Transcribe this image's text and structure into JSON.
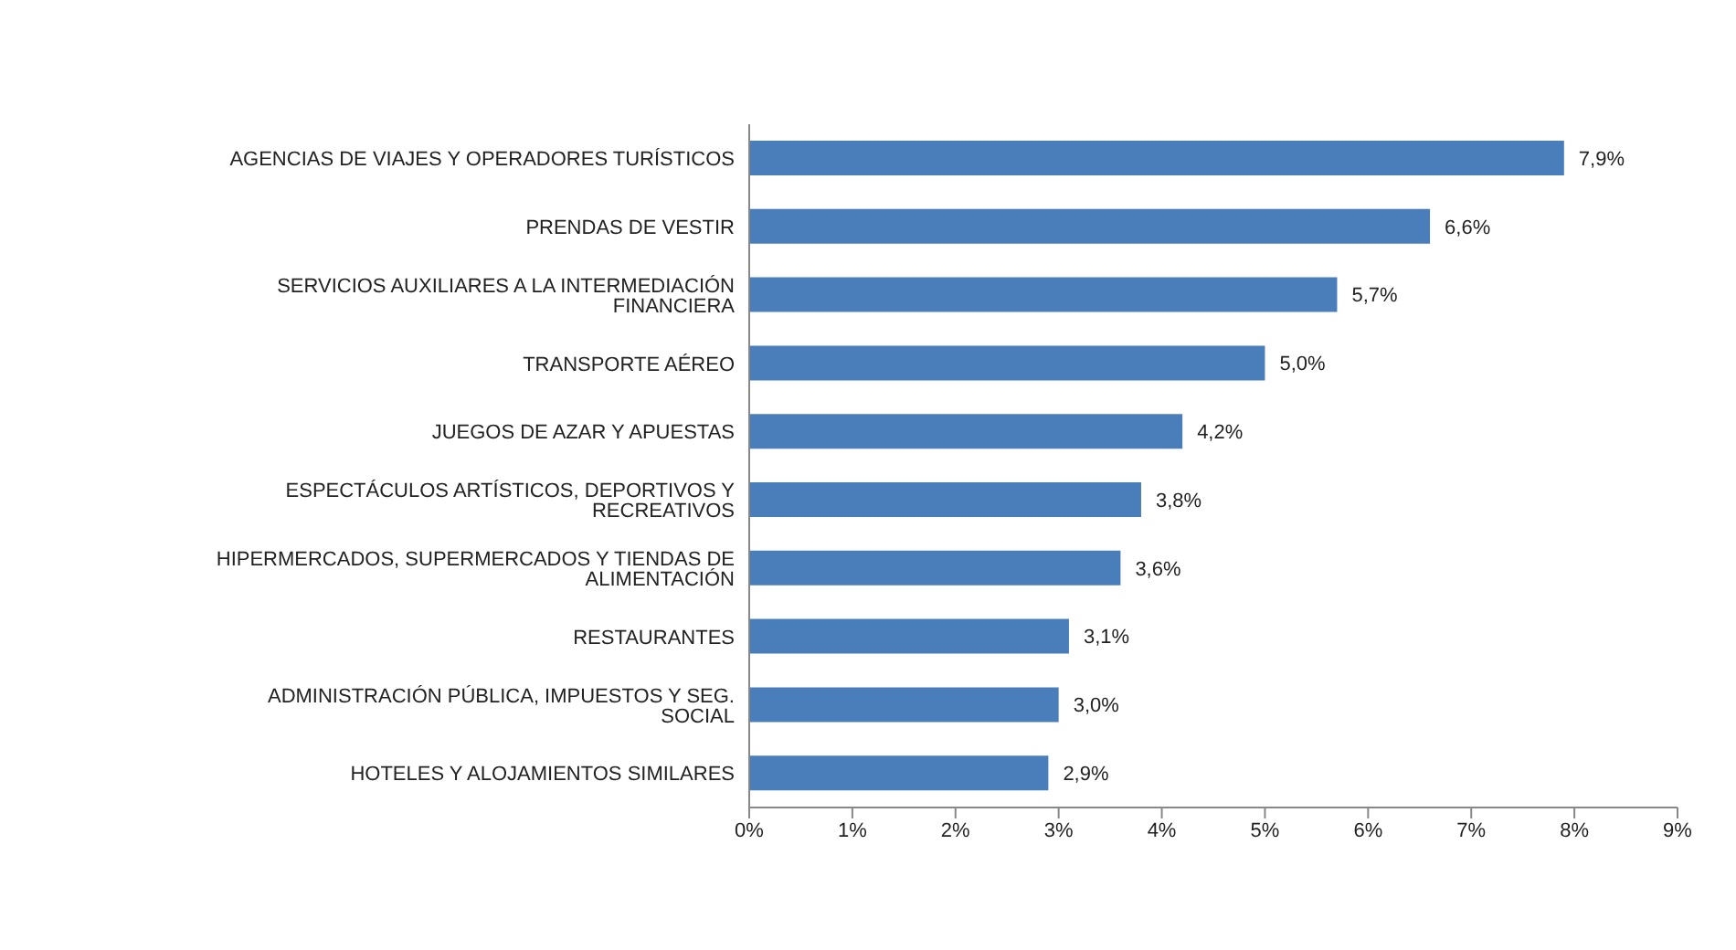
{
  "chart_data": {
    "type": "bar",
    "orientation": "horizontal",
    "categories": [
      "AGENCIAS DE VIAJES Y OPERADORES TURÍSTICOS",
      "PRENDAS DE VESTIR",
      "SERVICIOS AUXILIARES A LA INTERMEDIACIÓN FINANCIERA",
      "TRANSPORTE AÉREO",
      "JUEGOS DE AZAR Y APUESTAS",
      "ESPECTÁCULOS ARTÍSTICOS, DEPORTIVOS Y RECREATIVOS",
      "HIPERMERCADOS, SUPERMERCADOS Y TIENDAS DE ALIMENTACIÓN",
      "RESTAURANTES",
      "ADMINISTRACIÓN PÚBLICA, IMPUESTOS Y SEG. SOCIAL",
      "HOTELES  Y ALOJAMIENTOS SIMILARES"
    ],
    "values": [
      7.9,
      6.6,
      5.7,
      5.0,
      4.2,
      3.8,
      3.6,
      3.1,
      3.0,
      2.9
    ],
    "value_labels": [
      "7,9%",
      "6,6%",
      "5,7%",
      "5,0%",
      "4,2%",
      "3,8%",
      "3,6%",
      "3,1%",
      "3,0%",
      "2,9%"
    ],
    "color": "#4a7ebb",
    "xlim": [
      0,
      9
    ],
    "xticks": [
      {
        "value": 0,
        "label": "0%"
      },
      {
        "value": 1,
        "label": "1%"
      },
      {
        "value": 2,
        "label": "2%"
      },
      {
        "value": 3,
        "label": "3%"
      },
      {
        "value": 4,
        "label": "4%"
      },
      {
        "value": 5,
        "label": "5%"
      },
      {
        "value": 6,
        "label": "6%"
      },
      {
        "value": 7,
        "label": "7%"
      },
      {
        "value": 8,
        "label": "8%"
      },
      {
        "value": 9,
        "label": "9%"
      }
    ],
    "grid": false,
    "legend": false
  }
}
